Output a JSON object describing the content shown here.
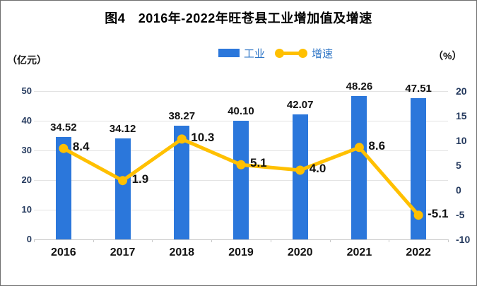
{
  "title": "图4　2016年-2022年旺苍县工业增加值及增速",
  "axis_unit_left": "（亿元）",
  "axis_unit_right": "（%）",
  "legend": [
    {
      "label": "工业",
      "type": "bar"
    },
    {
      "label": "增速",
      "type": "line"
    }
  ],
  "colors": {
    "bar": "#2B77DB",
    "line": "#FFC000",
    "legend_text": "#2E75C6",
    "tick_text": "#253A5E",
    "label_text": "#1A1A1A",
    "grid": "#E3E3E3",
    "axis_line": "#C9C9C9",
    "title_text": "#000000",
    "frame_border": "#6E6E6E"
  },
  "chart_data": {
    "type": "bar",
    "subtype": "bar+line dual-axis",
    "title": "图4　2016年-2022年旺苍县工业增加值及增速",
    "categories": [
      "2016",
      "2017",
      "2018",
      "2019",
      "2020",
      "2021",
      "2022"
    ],
    "series": [
      {
        "name": "工业",
        "type": "bar",
        "axis": "left",
        "unit": "亿元",
        "values": [
          34.52,
          34.12,
          38.27,
          40.1,
          42.07,
          48.26,
          47.51
        ],
        "labels": [
          "34.52",
          "34.12",
          "38.27",
          "40.10",
          "42.07",
          "48.26",
          "47.51"
        ]
      },
      {
        "name": "增速",
        "type": "line",
        "axis": "right",
        "unit": "%",
        "values": [
          8.4,
          1.9,
          10.3,
          5.1,
          4.0,
          8.6,
          -5.1
        ],
        "labels": [
          "8.4",
          "1.9",
          "10.3",
          "5.1",
          "4.0",
          "8.6",
          "-5.1"
        ]
      }
    ],
    "left_axis": {
      "title": "（亿元）",
      "min": 0,
      "max": 50,
      "ticks": [
        50,
        40,
        30,
        20,
        10,
        0
      ]
    },
    "right_axis": {
      "title": "（%）",
      "min": -10,
      "max": 20,
      "ticks": [
        20,
        15,
        10,
        5,
        0,
        -5,
        -10
      ]
    },
    "grid": true,
    "legend_position": "top"
  }
}
